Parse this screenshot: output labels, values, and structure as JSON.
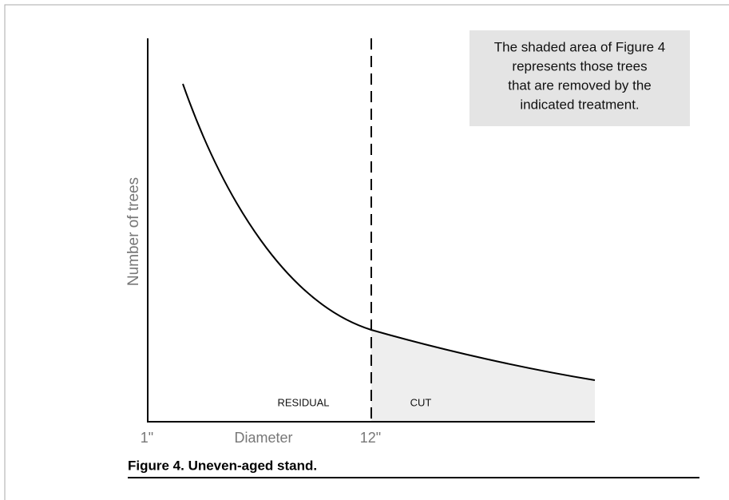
{
  "note": {
    "lines": [
      "The shaded area of Figure 4",
      "represents those trees",
      "that are removed by the",
      "indicated treatment."
    ]
  },
  "axes": {
    "y_label": "Number of trees",
    "x_start": "1\"",
    "x_label": "Diameter",
    "x_mark": "12\""
  },
  "regions": [
    "RESIDUAL",
    "CUT"
  ],
  "caption": "Figure 4. Uneven-aged stand."
}
